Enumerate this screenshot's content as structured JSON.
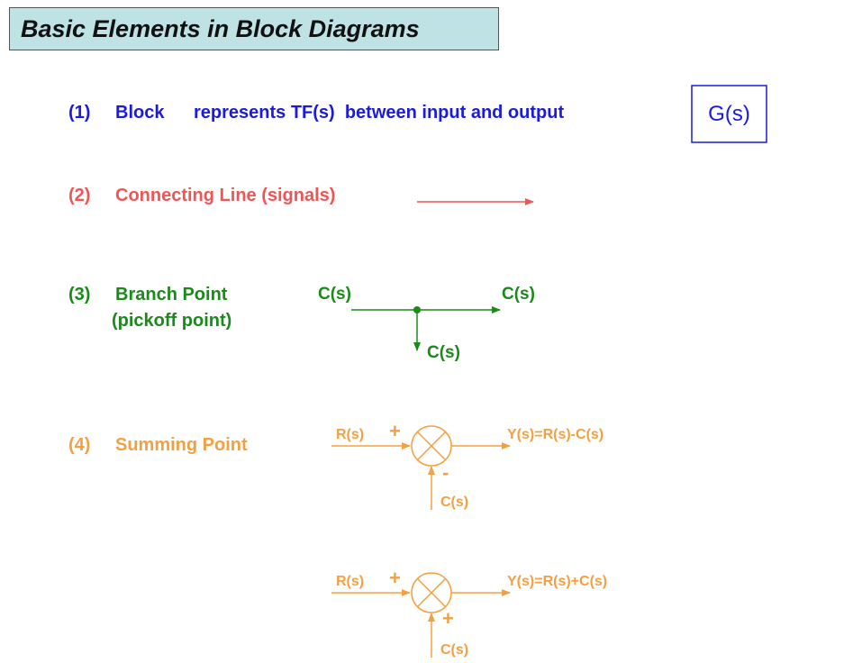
{
  "title": "Basic Elements in Block Diagrams",
  "colors": {
    "blue": "#1a1ae0",
    "red": "#f05555",
    "green": "#1a8a1a",
    "orange": "#f5a040"
  },
  "item1": {
    "number": "(1)",
    "label": "Block",
    "description": "represents TF(s)  between input and output",
    "block_label": "G(s)"
  },
  "item2": {
    "number": "(2)",
    "label": "Connecting Line (signals)"
  },
  "item3": {
    "number": "(3)",
    "label": "Branch Point",
    "sublabel": "(pickoff point)",
    "input": "C(s)",
    "output_right": "C(s)",
    "output_down": "C(s)"
  },
  "item4": {
    "number": "(4)",
    "label": "Summing Point",
    "sub": {
      "input": "R(s)",
      "plus": "+",
      "minus": "-",
      "feedback": "C(s)",
      "output": "Y(s)=R(s)-C(s)"
    },
    "add": {
      "input": "R(s)",
      "plus": "+",
      "plus2": "+",
      "feedback": "C(s)",
      "output": "Y(s)=R(s)+C(s)"
    }
  }
}
